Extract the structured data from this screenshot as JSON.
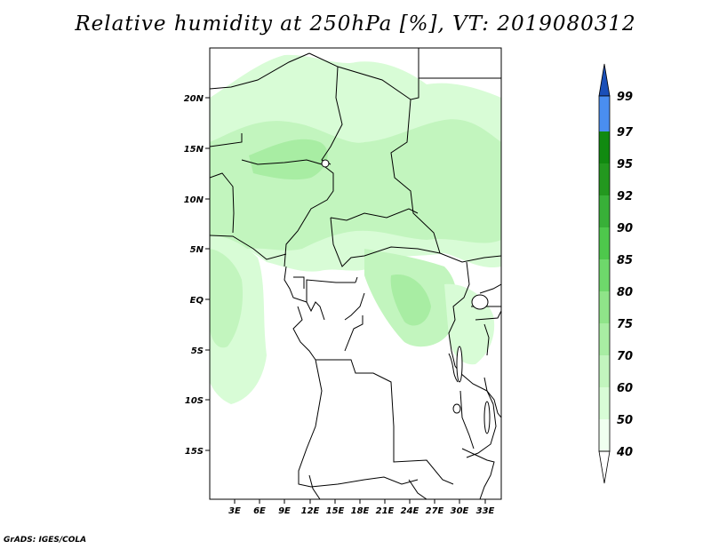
{
  "title": "Relative humidity at 250hPa [%], VT: 2019080312",
  "credit": "GrADS: IGES/COLA",
  "map": {
    "lat_ticks": [
      "20N",
      "15N",
      "10N",
      "5N",
      "EQ",
      "5S",
      "10S",
      "15S"
    ],
    "lon_ticks": [
      "3E",
      "6E",
      "9E",
      "12E",
      "15E",
      "18E",
      "21E",
      "24E",
      "27E",
      "30E",
      "33E"
    ]
  },
  "colorbar": {
    "levels": [
      "40",
      "50",
      "60",
      "70",
      "75",
      "80",
      "85",
      "90",
      "92",
      "95",
      "97",
      "99"
    ],
    "colors": [
      "#f0fff0",
      "#d8fcd6",
      "#c2f5be",
      "#a8eda3",
      "#8fe489",
      "#6ed86b",
      "#4ec84c",
      "#38b038",
      "#23981f",
      "#118a10",
      "#4a8ef0",
      "#1e64d8",
      "#1a4fb8"
    ]
  }
}
